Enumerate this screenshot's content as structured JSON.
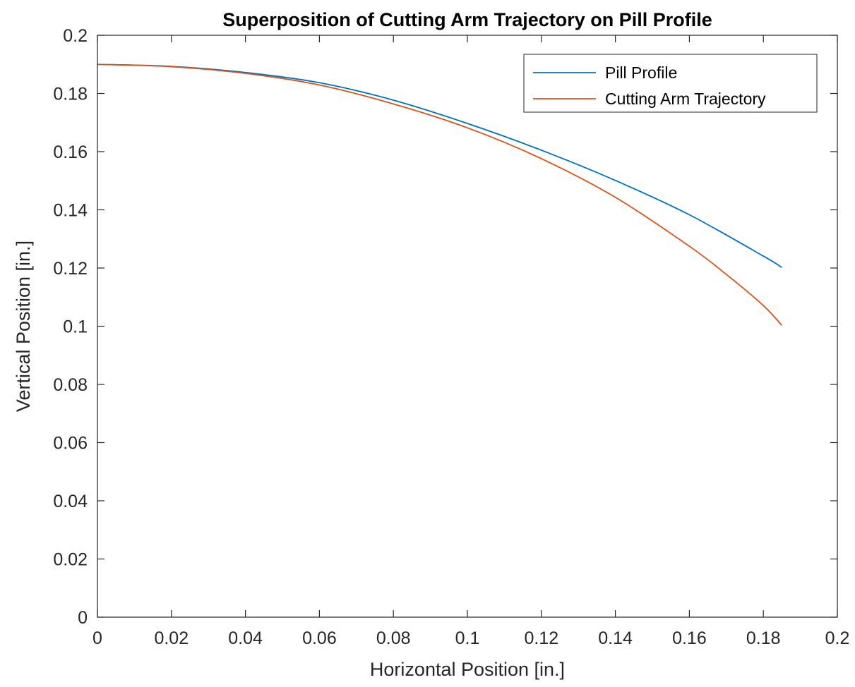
{
  "chart_data": {
    "type": "line",
    "title": "Superposition of Cutting Arm Trajectory on Pill Profile",
    "xlabel": "Horizontal Position [in.]",
    "ylabel": "Vertical Position [in.]",
    "xlim": [
      0,
      0.2
    ],
    "ylim": [
      0,
      0.2
    ],
    "xticks": [
      0,
      0.02,
      0.04,
      0.06,
      0.08,
      0.1,
      0.12,
      0.14,
      0.16,
      0.18,
      0.2
    ],
    "xtick_labels": [
      "0",
      "0.02",
      "0.04",
      "0.06",
      "0.08",
      "0.1",
      "0.12",
      "0.14",
      "0.16",
      "0.18",
      "0.2"
    ],
    "yticks": [
      0,
      0.02,
      0.04,
      0.06,
      0.08,
      0.1,
      0.12,
      0.14,
      0.16,
      0.18,
      0.2
    ],
    "ytick_labels": [
      "0",
      "0.02",
      "0.04",
      "0.06",
      "0.08",
      "0.1",
      "0.12",
      "0.14",
      "0.16",
      "0.18",
      "0.2"
    ],
    "grid": false,
    "box": true,
    "legend_position": "top-right",
    "series": [
      {
        "name": "Pill Profile",
        "color": "#0072BD",
        "x": [
          0,
          0.02,
          0.04,
          0.06,
          0.08,
          0.1,
          0.12,
          0.14,
          0.16,
          0.18,
          0.185
        ],
        "y": [
          0.19,
          0.1893,
          0.1872,
          0.1837,
          0.1777,
          0.1697,
          0.1605,
          0.1501,
          0.1383,
          0.1241,
          0.1202
        ]
      },
      {
        "name": "Cutting Arm Trajectory",
        "color": "#D95319",
        "x": [
          0,
          0.02,
          0.04,
          0.06,
          0.08,
          0.1,
          0.12,
          0.14,
          0.16,
          0.17,
          0.18,
          0.185
        ],
        "y": [
          0.19,
          0.1892,
          0.1869,
          0.1829,
          0.1764,
          0.1682,
          0.1576,
          0.1443,
          0.1275,
          0.1178,
          0.1071,
          0.1003
        ]
      }
    ]
  }
}
